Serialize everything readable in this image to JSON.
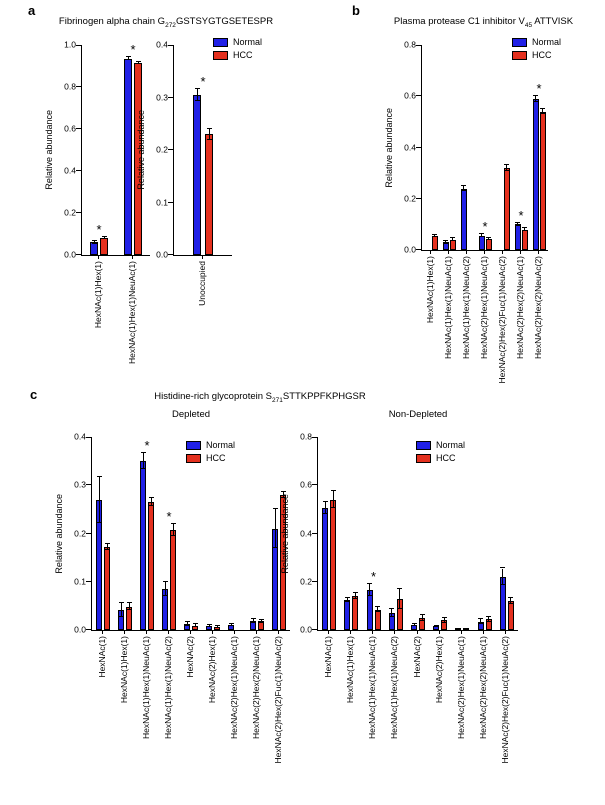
{
  "figure": {
    "ylabel": "Relative abundance",
    "sig_marker": "*",
    "legend": {
      "normal": "Normal",
      "hcc": "HCC"
    },
    "colors": {
      "normal": "#2020e6",
      "hcc": "#e4301e",
      "axis": "#000000"
    }
  },
  "panels": {
    "a": {
      "label": "a",
      "title": {
        "pre": "Fibrinogen alpha chain G",
        "sub": "272",
        "post": "GSTSYGTGSETESPR"
      }
    },
    "b": {
      "label": "b",
      "title": {
        "pre": "Plasma protease C1 inhibitor V",
        "sub": "45",
        "post": " ATTVISK"
      }
    },
    "c": {
      "label": "c",
      "title": {
        "pre": "Histidine-rich glycoprotein S",
        "sub": "271",
        "post": "STTKPPFKPHGSR"
      },
      "subtitles": [
        "Depleted",
        "Non-Depleted"
      ]
    }
  },
  "chart_data": [
    {
      "id": "a-left",
      "type": "bar",
      "panel": "a",
      "ylabel": "Relative abundance",
      "ylim": [
        0,
        1.0
      ],
      "yticks": [
        "0.0",
        "0.2",
        "0.4",
        "0.6",
        "0.8",
        "1.0"
      ],
      "grid": false,
      "categories": [
        "HexNAc(1)Hex(1)",
        "HexNAc(1)Hex(1)NeuAc(1)"
      ],
      "series": [
        {
          "name": "Normal",
          "color": "normal",
          "values": [
            0.06,
            0.935
          ],
          "errors": [
            0.006,
            0.008
          ]
        },
        {
          "name": "HCC",
          "color": "hcc",
          "values": [
            0.08,
            0.915
          ],
          "errors": [
            0.005,
            0.006
          ]
        }
      ],
      "significant": [
        true,
        true
      ]
    },
    {
      "id": "a-right",
      "type": "bar",
      "panel": "a",
      "ylabel": "Relative abundance",
      "ylim": [
        0,
        0.4
      ],
      "yticks": [
        "0.0",
        "0.1",
        "0.2",
        "0.3",
        "0.4"
      ],
      "grid": false,
      "categories": [
        "Unoccupied"
      ],
      "series": [
        {
          "name": "Normal",
          "color": "normal",
          "values": [
            0.305
          ],
          "errors": [
            0.012
          ]
        },
        {
          "name": "HCC",
          "color": "hcc",
          "values": [
            0.23
          ],
          "errors": [
            0.01
          ]
        }
      ],
      "significant": [
        true
      ]
    },
    {
      "id": "b",
      "type": "bar",
      "panel": "b",
      "ylabel": "Relative abundance",
      "ylim": [
        0,
        0.8
      ],
      "yticks": [
        "0.0",
        "0.2",
        "0.4",
        "0.6",
        "0.8"
      ],
      "grid": false,
      "categories": [
        "HexNAc(1)Hex(1)",
        "HexNAc(1)Hex(1)NeuAc(1)",
        "HexNAc(1)Hex(1)NeuAc(2)",
        "HexNAc(2)Hex(1)NeuAc(1)",
        "HexNAc(2)Hex(2)Fuc(1)NeuAc(2)",
        "HexNAc(2)Hex(2)NeuAc(1)",
        "HexNAc(2)Hex(2)NeuAc(2)"
      ],
      "series": [
        {
          "name": "Normal",
          "color": "normal",
          "values": [
            0,
            0.03,
            0.24,
            0.055,
            0,
            0.1,
            0.59
          ],
          "errors": [
            0,
            0.005,
            0.01,
            0.006,
            0,
            0.007,
            0.012
          ]
        },
        {
          "name": "HCC",
          "color": "hcc",
          "values": [
            0.055,
            0.04,
            0,
            0.042,
            0.32,
            0.08,
            0.54
          ],
          "errors": [
            0.004,
            0.005,
            0,
            0.004,
            0.012,
            0.006,
            0.01
          ]
        }
      ],
      "significant": [
        false,
        false,
        false,
        true,
        false,
        true,
        true
      ]
    },
    {
      "id": "c-depleted",
      "type": "bar",
      "panel": "c",
      "subtitle": "Depleted",
      "ylabel": "Relative abundance",
      "ylim": [
        0,
        0.4
      ],
      "yticks": [
        "0.0",
        "0.1",
        "0.2",
        "0.3",
        "0.4"
      ],
      "grid": false,
      "categories": [
        "HexNAc(1)",
        "HexNAc(1)Hex(1)",
        "HexNAc(1)Hex(1)NeuAc(1)",
        "HexNAc(1)Hex(1)NeuAc(2)",
        "HexNAc(2)",
        "HexNAc(2)Hex(1)",
        "HexNAc(2)Hex(1)NeuAc(1)",
        "HexNAc(2)Hex(2)NeuAc(1)",
        "HexNAc(2)Hex(2)Fuc(1)NeuAc(2)"
      ],
      "series": [
        {
          "name": "Normal",
          "color": "normal",
          "values": [
            0.27,
            0.042,
            0.35,
            0.085,
            0.013,
            0.008,
            0.011,
            0.018,
            0.21
          ],
          "errors": [
            0.048,
            0.015,
            0.016,
            0.015,
            0.004,
            0.002,
            0.002,
            0.004,
            0.04
          ]
        },
        {
          "name": "HCC",
          "color": "hcc",
          "values": [
            0.172,
            0.048,
            0.265,
            0.207,
            0.009,
            0.007,
            0,
            0.018,
            0.28
          ],
          "errors": [
            0.007,
            0.007,
            0.008,
            0.012,
            0.003,
            0.002,
            0,
            0.003,
            0.006
          ]
        }
      ],
      "significant": [
        false,
        false,
        true,
        true,
        false,
        false,
        false,
        false,
        false
      ]
    },
    {
      "id": "c-nondepleted",
      "type": "bar",
      "panel": "c",
      "subtitle": "Non-Depleted",
      "ylabel": "Relative abundance",
      "ylim": [
        0,
        0.8
      ],
      "yticks": [
        "0.0",
        "0.2",
        "0.4",
        "0.6",
        "0.8"
      ],
      "grid": false,
      "categories": [
        "HexNAc(1)",
        "HexNAc(1)Hex(1)",
        "HexNAc(1)Hex(1)NeuAc(1)",
        "HexNAc(1)Hex(1)NeuAc(2)",
        "HexNAc(2)",
        "HexNAc(2)Hex(1)",
        "HexNAc(2)Hex(1)NeuAc(1)",
        "HexNAc(2)Hex(2)NeuAc(1)",
        "HexNAc(2)Hex(2)Fuc(1)NeuAc(2)"
      ],
      "series": [
        {
          "name": "Normal",
          "color": "normal",
          "values": [
            0.505,
            0.125,
            0.165,
            0.07,
            0.02,
            0.015,
            0.004,
            0.035,
            0.22
          ],
          "errors": [
            0.025,
            0.008,
            0.025,
            0.018,
            0.005,
            0.003,
            0,
            0.012,
            0.035
          ]
        },
        {
          "name": "HCC",
          "color": "hcc",
          "values": [
            0.54,
            0.14,
            0.085,
            0.13,
            0.05,
            0.04,
            0.004,
            0.045,
            0.12
          ],
          "errors": [
            0.035,
            0.013,
            0.01,
            0.042,
            0.013,
            0.01,
            0,
            0.01,
            0.012
          ]
        }
      ],
      "significant": [
        false,
        false,
        true,
        false,
        false,
        false,
        false,
        false,
        false
      ]
    }
  ]
}
